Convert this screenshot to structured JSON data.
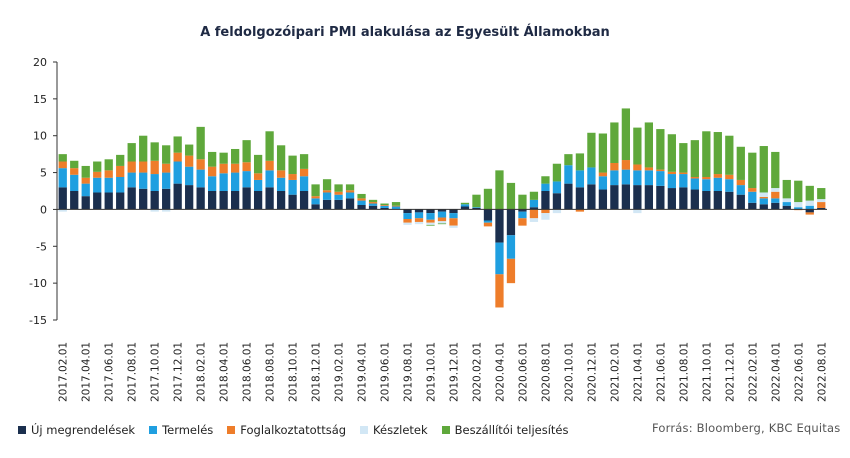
{
  "chart_data": {
    "type": "stacked-bar",
    "title": "A feldolgozóipari PMI alakulása az Egyesült  Államokban",
    "ylim": [
      -15,
      20
    ],
    "yticks": [
      20,
      15,
      10,
      5,
      0,
      -5,
      -10,
      -15
    ],
    "grid": false,
    "legend_position": "bottom-left",
    "categories": [
      "2017.02.01",
      "2017.03.01",
      "2017.04.01",
      "2017.05.01",
      "2017.06.01",
      "2017.07.01",
      "2017.08.01",
      "2017.09.01",
      "2017.10.01",
      "2017.11.01",
      "2017.12.01",
      "2018.01.01",
      "2018.02.01",
      "2018.03.01",
      "2018.04.01",
      "2018.05.01",
      "2018.06.01",
      "2018.07.01",
      "2018.08.01",
      "2018.09.01",
      "2018.10.01",
      "2018.11.01",
      "2018.12.01",
      "2019.01.01",
      "2019.02.01",
      "2019.03.01",
      "2019.04.01",
      "2019.05.01",
      "2019.06.01",
      "2019.07.01",
      "2019.08.01",
      "2019.09.01",
      "2019.10.01",
      "2019.11.01",
      "2019.12.01",
      "2020.01.01",
      "2020.02.01",
      "2020.03.01",
      "2020.04.01",
      "2020.05.01",
      "2020.06.01",
      "2020.07.01",
      "2020.08.01",
      "2020.09.01",
      "2020.10.01",
      "2020.11.01",
      "2020.12.01",
      "2021.01.01",
      "2021.02.01",
      "2021.03.01",
      "2021.04.01",
      "2021.05.01",
      "2021.06.01",
      "2021.07.01",
      "2021.08.01",
      "2021.09.01",
      "2021.10.01",
      "2021.11.01",
      "2021.12.01",
      "2022.01.01",
      "2022.02.01",
      "2022.03.01",
      "2022.04.01",
      "2022.05.01",
      "2022.06.01",
      "2022.07.01",
      "2022.08.01"
    ],
    "x_tick_labels": [
      "2017.02.01",
      "2017.04.01",
      "2017.06.01",
      "2017.08.01",
      "2017.10.01",
      "2017.12.01",
      "2018.02.01",
      "2018.04.01",
      "2018.06.01",
      "2018.08.01",
      "2018.10.01",
      "2018.12.01",
      "2019.02.01",
      "2019.04.01",
      "2019.06.01",
      "2019.08.01",
      "2019.10.01",
      "2019.12.01",
      "2020.02.01",
      "2020.04.01",
      "2020.06.01",
      "2020.08.01",
      "2020.10.01",
      "2020.12.01",
      "2021.02.01",
      "2021.04.01",
      "2021.06.01",
      "2021.08.01",
      "2021.10.01",
      "2021.12.01",
      "2022.02.01",
      "2022.04.01",
      "2022.06.01",
      "2022.08.01"
    ],
    "series": [
      {
        "name": "Új megrendelések",
        "color": "#1b2f4e",
        "values": [
          3,
          2.5,
          1.8,
          2.3,
          2.3,
          2.3,
          3,
          2.8,
          2.5,
          2.8,
          3.5,
          3.3,
          3,
          2.5,
          2.5,
          2.5,
          3,
          2.5,
          3,
          2.5,
          2,
          2.5,
          0.7,
          1.3,
          1.3,
          1.5,
          0.6,
          0.5,
          0.2,
          0,
          -0.5,
          -0.4,
          -0.5,
          -0.3,
          -0.5,
          0.4,
          0.2,
          -1.5,
          -4.5,
          -3.5,
          -0.3,
          0.3,
          2.5,
          2.2,
          3.5,
          3,
          3.4,
          2.7,
          3.3,
          3.4,
          3.3,
          3.3,
          3.2,
          2.9,
          3,
          2.7,
          2.5,
          2.5,
          2.4,
          2,
          0.9,
          0.7,
          0.9,
          0.5,
          0,
          -0.4,
          0.2
        ]
      },
      {
        "name": "Termelés",
        "color": "#1f9fe0",
        "values": [
          2.6,
          2.2,
          1.7,
          2,
          2,
          2.1,
          2,
          2.2,
          2.3,
          2.2,
          3,
          2.5,
          2.4,
          2,
          2.4,
          2.5,
          2.2,
          1.5,
          2.3,
          1.8,
          2,
          2,
          0.8,
          1,
          0.7,
          0.8,
          0.6,
          0.3,
          0.3,
          0.4,
          -0.8,
          -0.8,
          -0.9,
          -0.8,
          -0.7,
          0.3,
          0.1,
          -0.3,
          -4.3,
          -3.2,
          -0.9,
          1,
          1,
          1.6,
          2.5,
          2.3,
          2.3,
          1.8,
          2,
          2,
          2,
          2,
          2,
          1.9,
          1.8,
          1.5,
          1.6,
          1.8,
          1.7,
          1.3,
          1.5,
          0.8,
          0.6,
          0.5,
          0.3,
          0.5,
          0
        ]
      },
      {
        "name": "Foglalkoztatottság",
        "color": "#ee7d2a",
        "values": [
          0.9,
          0.9,
          0.8,
          0.8,
          1,
          1.5,
          1.5,
          1.5,
          1.8,
          1.2,
          1.2,
          1.5,
          1.4,
          1.3,
          1.3,
          1.2,
          1.2,
          0.9,
          1.3,
          1,
          0.8,
          1,
          0.3,
          0.3,
          0.4,
          0.3,
          0.3,
          0.2,
          0.1,
          0.1,
          -0.5,
          -0.5,
          -0.4,
          -0.5,
          -1,
          0,
          0,
          -0.5,
          -4.5,
          -3.3,
          -1,
          -1.2,
          -0.5,
          0,
          0,
          -0.3,
          0,
          0.5,
          1,
          1.3,
          0.8,
          0.4,
          0.2,
          0.3,
          0.2,
          0.2,
          0.3,
          0.5,
          0.6,
          0.7,
          0.5,
          0.2,
          0.9,
          0,
          -0.1,
          -0.3,
          0.8
        ]
      },
      {
        "name": "Készletek",
        "color": "#d2e7f5",
        "values": [
          -0.3,
          0,
          0,
          0,
          0,
          0,
          0,
          0,
          -0.3,
          -0.3,
          0,
          0,
          0,
          0,
          0,
          0,
          0,
          0,
          0,
          0,
          0,
          0,
          0,
          0,
          0,
          0,
          0,
          0,
          0,
          0,
          -0.3,
          -0.3,
          -0.3,
          -0.3,
          -0.3,
          0,
          0,
          0,
          0,
          0,
          0,
          -0.5,
          -0.9,
          -0.5,
          0,
          0,
          0,
          0,
          0,
          0,
          -0.5,
          0,
          0,
          0,
          0,
          0,
          0,
          0,
          0,
          0,
          0,
          0.6,
          0.5,
          0.5,
          0.7,
          0.7,
          0.4
        ]
      },
      {
        "name": "Beszállítói teljesítés",
        "color": "#5fa83b",
        "values": [
          1,
          1,
          1.6,
          1.4,
          1.5,
          1.5,
          2.5,
          3.5,
          2.5,
          2.5,
          2.2,
          1.5,
          4.4,
          2,
          1.5,
          2,
          3,
          2.5,
          4,
          3.4,
          2.5,
          2,
          1.6,
          1.5,
          1,
          0.8,
          0.6,
          0.3,
          0.2,
          0.5,
          0,
          0,
          -0.1,
          -0.1,
          0,
          0.2,
          1.7,
          2.8,
          5.3,
          3.6,
          2,
          1.1,
          1,
          2.4,
          1.5,
          2.3,
          4.7,
          5.3,
          5.5,
          7,
          5,
          6.1,
          5.5,
          5.1,
          4,
          5,
          6.2,
          5.7,
          5.3,
          4.5,
          4.8,
          6.3,
          4.9,
          2.5,
          2.9,
          2,
          1.5
        ]
      }
    ]
  },
  "legend": {
    "items": [
      {
        "label": "Új megrendelések",
        "color": "#1b2f4e"
      },
      {
        "label": "Termelés",
        "color": "#1f9fe0"
      },
      {
        "label": "Foglalkoztatottság",
        "color": "#ee7d2a"
      },
      {
        "label": "Készletek",
        "color": "#d2e7f5"
      },
      {
        "label": "Beszállítói teljesítés",
        "color": "#5fa83b"
      }
    ]
  },
  "source": "Forrás: Bloomberg, KBC Equitas"
}
